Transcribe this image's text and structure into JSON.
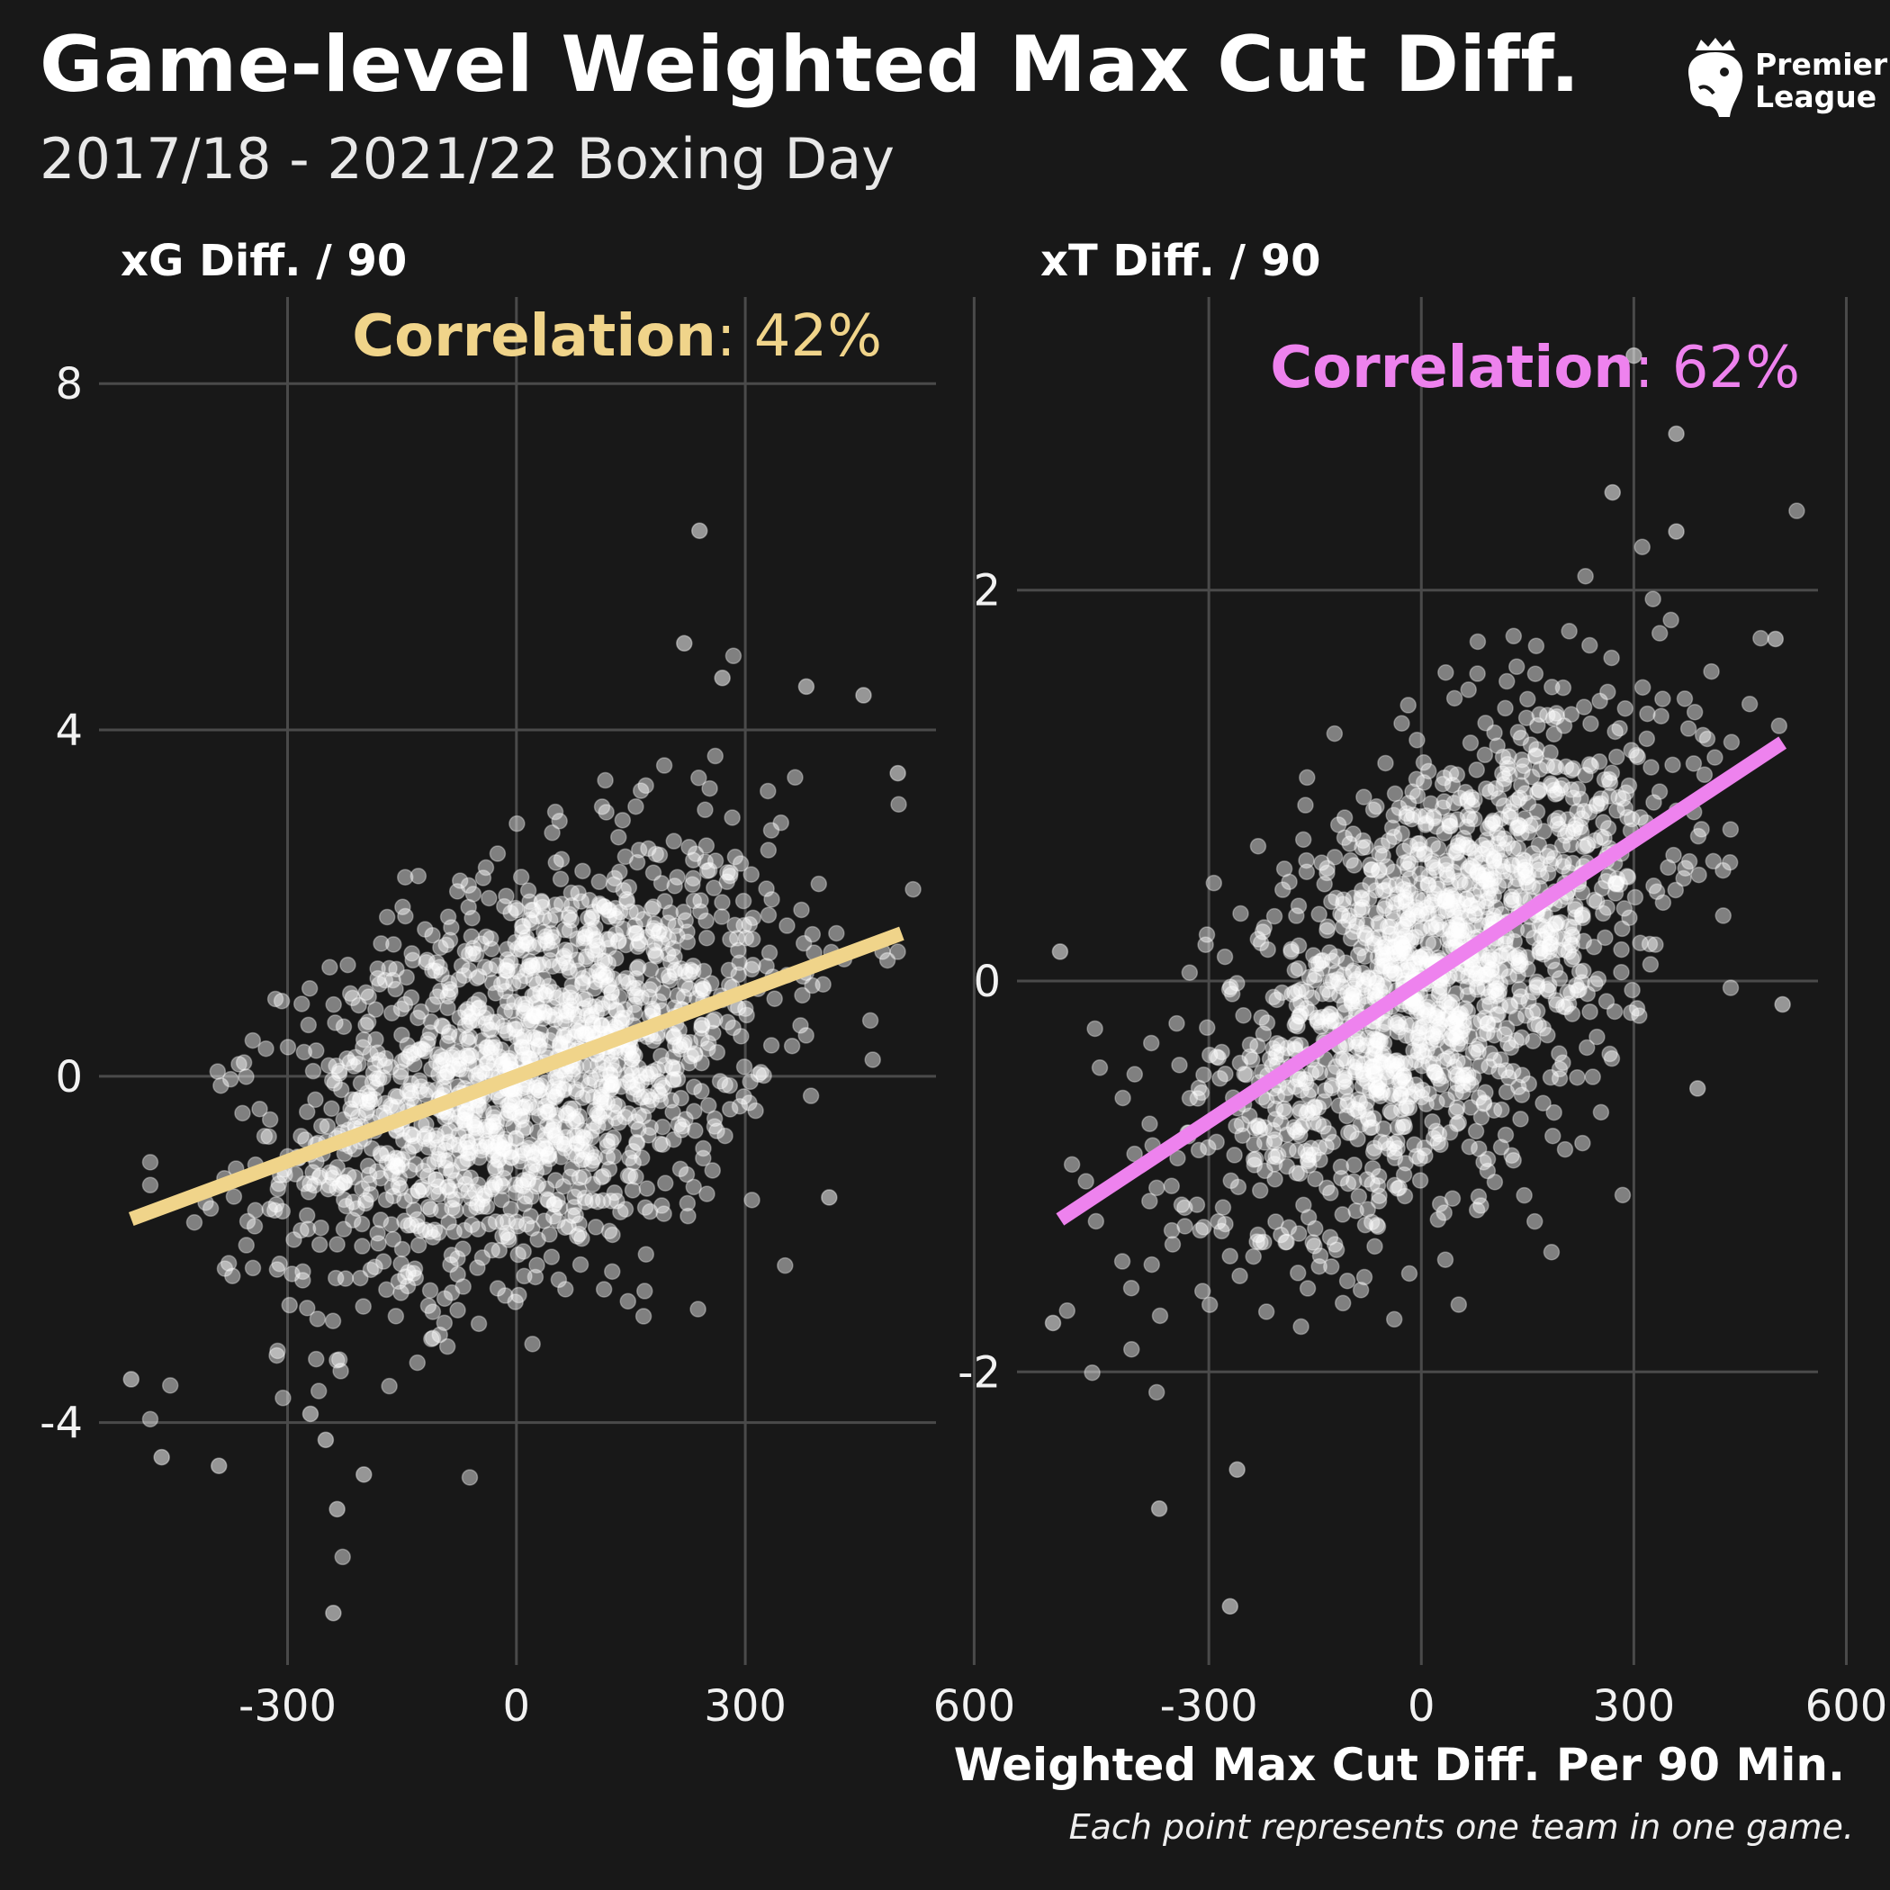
{
  "title": "Game-level Weighted Max Cut Diff.",
  "subtitle": "2017/18 - 2021/22 Boxing Day",
  "logo": {
    "line1": "Premier",
    "line2": "League",
    "icon": "lion-crown-icon"
  },
  "x_axis_title": "Weighted Max Cut Diff. Per 90 Min.",
  "caption": "Each point represents one team in one game.",
  "chart_data": [
    {
      "type": "scatter",
      "panel_title": "xG Diff. / 90",
      "correlation_label": "Correlation",
      "correlation_value": ": 42%",
      "correlation_color": "#f0d48a",
      "line_color": "#f0d48a",
      "point_color": "#ffffff",
      "xlim": [
        -500,
        550
      ],
      "ylim": [
        -6.8,
        9
      ],
      "x_ticks": [
        -300,
        0,
        300,
        600
      ],
      "x_tick_labels": [
        "-300",
        "0",
        "300",
        "600"
      ],
      "y_ticks": [
        -4,
        0,
        4,
        8
      ],
      "y_tick_labels": [
        "-4",
        "0",
        "4",
        "8"
      ],
      "grid": true,
      "trend_line": {
        "x": [
          -505,
          505
        ],
        "y": [
          -1.65,
          1.65
        ]
      },
      "highlighted_points": [
        [
          240,
          6.3
        ],
        [
          220,
          5.0
        ],
        [
          270,
          4.6
        ],
        [
          -240,
          -6.2
        ],
        [
          -235,
          -5.0
        ],
        [
          380,
          4.5
        ],
        [
          455,
          4.4
        ],
        [
          500,
          3.5
        ],
        [
          410,
          -1.4
        ],
        [
          -505,
          -3.5
        ],
        [
          -465,
          -4.4
        ],
        [
          -390,
          -4.5
        ],
        [
          -250,
          -4.2
        ],
        [
          -200,
          -4.6
        ],
        [
          -270,
          -3.9
        ]
      ],
      "cloud": {
        "n_points": 1700,
        "x_mean": 20,
        "x_sd": 160,
        "y_intercept": 0.0,
        "y_slope": 0.0032,
        "y_resid_sd": 1.15
      }
    },
    {
      "type": "scatter",
      "panel_title": "xT Diff. / 90",
      "correlation_label": "Correlation",
      "correlation_value": ": 62%",
      "correlation_color": "#ee82ee",
      "line_color": "#ee82ee",
      "point_color": "#ffffff",
      "xlim": [
        -520,
        560
      ],
      "ylim": [
        -3.5,
        3.5
      ],
      "x_ticks": [
        -300,
        0,
        300,
        600
      ],
      "x_tick_labels": [
        "-300",
        "0",
        "300",
        "600"
      ],
      "y_ticks": [
        -2,
        0,
        2
      ],
      "y_tick_labels": [
        "-2",
        "0",
        "2"
      ],
      "grid": true,
      "trend_line": {
        "x": [
          -510,
          510
        ],
        "y": [
          -1.22,
          1.22
        ]
      },
      "highlighted_points": [
        [
          300,
          3.2
        ],
        [
          360,
          2.8
        ],
        [
          270,
          2.5
        ],
        [
          360,
          2.3
        ],
        [
          -270,
          -3.2
        ],
        [
          -370,
          -2.7
        ],
        [
          -260,
          -2.5
        ],
        [
          -510,
          0.15
        ],
        [
          500,
          1.75
        ],
        [
          510,
          -0.12
        ],
        [
          390,
          -0.55
        ],
        [
          -520,
          -1.75
        ]
      ],
      "cloud": {
        "n_points": 1700,
        "x_mean": 20,
        "x_sd": 160,
        "y_intercept": 0.0,
        "y_slope": 0.0024,
        "y_resid_sd": 0.52
      }
    }
  ]
}
